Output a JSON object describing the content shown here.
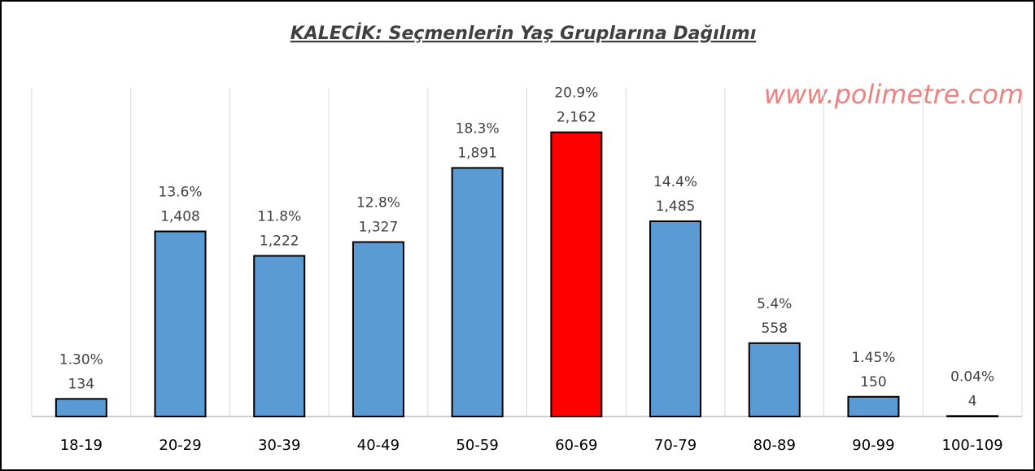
{
  "chart_data": {
    "type": "bar",
    "title": "KALECİK: Seçmenlerin Yaş Gruplarına Dağılımı",
    "watermark": "www.polimetre.com",
    "categories": [
      "18-19",
      "20-29",
      "30-39",
      "40-49",
      "50-59",
      "60-69",
      "70-79",
      "80-89",
      "90-99",
      "100-109"
    ],
    "values": [
      134,
      1408,
      1222,
      1327,
      1891,
      2162,
      1485,
      558,
      150,
      4
    ],
    "value_labels": [
      "134",
      "1,408",
      "1,222",
      "1,327",
      "1,891",
      "2,162",
      "1,485",
      "558",
      "150",
      "4"
    ],
    "percentages": [
      1.3,
      13.6,
      11.8,
      12.8,
      18.3,
      20.9,
      14.4,
      5.4,
      1.45,
      0.04
    ],
    "percentage_labels": [
      "1.30%",
      "13.6%",
      "11.8%",
      "12.8%",
      "18.3%",
      "20.9%",
      "14.4%",
      "5.4%",
      "1.45%",
      "0.04%"
    ],
    "colors": [
      "#5b9bd5",
      "#5b9bd5",
      "#5b9bd5",
      "#5b9bd5",
      "#5b9bd5",
      "#ff0000",
      "#5b9bd5",
      "#5b9bd5",
      "#5b9bd5",
      "#5b9bd5"
    ],
    "ylim": [
      0,
      2500
    ],
    "grid": true
  }
}
